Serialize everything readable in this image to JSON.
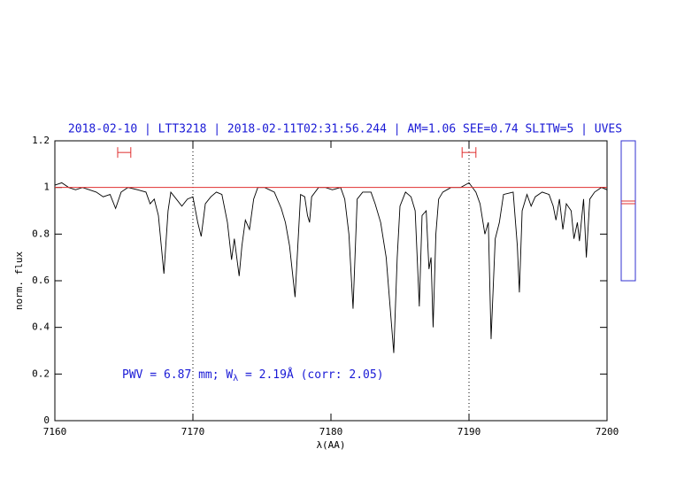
{
  "chart_data": {
    "type": "line",
    "title": "2018-02-10 | LTT3218 | 2018-02-11T02:31:56.244 | AM=1.06 SEE=0.74 SLITW=5 | UVES",
    "x_label": "λ(AA)",
    "y_label": "norm. flux",
    "annotation": [
      "PWV = 6.87 mm; W",
      "λ",
      " = 2.19Å (corr: 2.05)"
    ],
    "xlim": [
      7160,
      7200
    ],
    "ylim": [
      0,
      1.2
    ],
    "xticks": [
      7160,
      7170,
      7180,
      7190,
      7200
    ],
    "yticks": [
      0,
      0.2,
      0.4,
      0.6,
      0.8,
      1,
      1.2
    ],
    "hline": {
      "value": 1,
      "color": "#e03030"
    },
    "vlines": [
      7170,
      7190
    ],
    "markers": [
      {
        "x": [
          7164.55,
          7165.5
        ],
        "y": 1.15,
        "color": "#e03030"
      },
      {
        "x": [
          7189.5,
          7190.5
        ],
        "y": 1.15,
        "color": "#e03030"
      }
    ],
    "x": [
      7160,
      7160.5,
      7161,
      7161.5,
      7162,
      7162.5,
      7163,
      7163.5,
      7164,
      7164.4,
      7164.8,
      7165.3,
      7166,
      7166.6,
      7166.9,
      7167.2,
      7167.5,
      7167.9,
      7168.2,
      7168.4,
      7168.8,
      7169.2,
      7169.6,
      7170,
      7170.35,
      7170.6,
      7170.9,
      7171.3,
      7171.7,
      7172.1,
      7172.5,
      7172.8,
      7173.0,
      7173.35,
      7173.55,
      7173.8,
      7174.1,
      7174.4,
      7174.7,
      7175.2,
      7175.9,
      7176.4,
      7176.7,
      7177.0,
      7177.4,
      7177.8,
      7178.1,
      7178.3,
      7178.45,
      7178.6,
      7179.1,
      7179.6,
      7180.1,
      7180.7,
      7181.0,
      7181.3,
      7181.6,
      7181.9,
      7182.3,
      7182.9,
      7183.2,
      7183.6,
      7184.0,
      7184.55,
      7184.8,
      7185.0,
      7185.4,
      7185.8,
      7186.1,
      7186.4,
      7186.6,
      7186.9,
      7187.1,
      7187.25,
      7187.4,
      7187.6,
      7187.8,
      7188.1,
      7188.7,
      7189.4,
      7190,
      7190.5,
      7190.8,
      7191.15,
      7191.4,
      7191.6,
      7191.9,
      7192.2,
      7192.5,
      7193.2,
      7193.5,
      7193.65,
      7193.85,
      7194.2,
      7194.5,
      7194.8,
      7195.3,
      7195.8,
      7196.1,
      7196.3,
      7196.55,
      7196.8,
      7197.05,
      7197.4,
      7197.6,
      7197.85,
      7198.0,
      7198.3,
      7198.5,
      7198.75,
      7199.1,
      7199.6,
      7200
    ],
    "series": [
      {
        "color": "#000000",
        "values": [
          1.01,
          1.02,
          1.0,
          0.99,
          1.0,
          0.99,
          0.98,
          0.96,
          0.97,
          0.91,
          0.98,
          1.0,
          0.99,
          0.98,
          0.93,
          0.95,
          0.88,
          0.63,
          0.9,
          0.98,
          0.95,
          0.92,
          0.95,
          0.96,
          0.85,
          0.79,
          0.93,
          0.96,
          0.98,
          0.97,
          0.85,
          0.69,
          0.78,
          0.62,
          0.75,
          0.86,
          0.82,
          0.95,
          1.0,
          1.0,
          0.98,
          0.91,
          0.85,
          0.75,
          0.53,
          0.97,
          0.96,
          0.88,
          0.85,
          0.96,
          1.0,
          1.0,
          0.99,
          1.0,
          0.95,
          0.8,
          0.48,
          0.95,
          0.98,
          0.98,
          0.93,
          0.85,
          0.7,
          0.29,
          0.7,
          0.92,
          0.98,
          0.96,
          0.9,
          0.49,
          0.88,
          0.9,
          0.65,
          0.7,
          0.4,
          0.8,
          0.95,
          0.98,
          1.0,
          1.0,
          1.02,
          0.98,
          0.93,
          0.8,
          0.85,
          0.35,
          0.78,
          0.85,
          0.97,
          0.98,
          0.75,
          0.55,
          0.9,
          0.97,
          0.92,
          0.96,
          0.98,
          0.97,
          0.92,
          0.86,
          0.95,
          0.82,
          0.93,
          0.9,
          0.78,
          0.85,
          0.77,
          0.95,
          0.7,
          0.95,
          0.98,
          1.0,
          0.99
        ]
      }
    ]
  }
}
